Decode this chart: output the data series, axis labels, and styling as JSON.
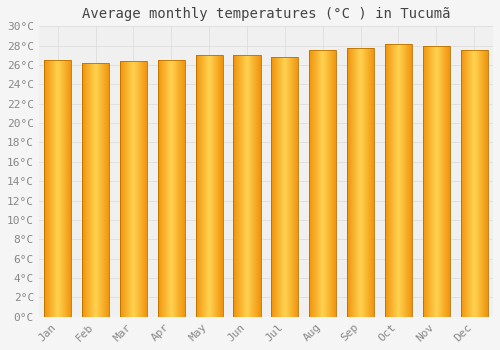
{
  "title": "Average monthly temperatures (°C ) in Tucumã",
  "months": [
    "Jan",
    "Feb",
    "Mar",
    "Apr",
    "May",
    "Jun",
    "Jul",
    "Aug",
    "Sep",
    "Oct",
    "Nov",
    "Dec"
  ],
  "values": [
    26.5,
    26.2,
    26.4,
    26.5,
    27.0,
    27.0,
    26.8,
    27.5,
    27.8,
    28.2,
    28.0,
    27.5
  ],
  "bar_color_center": "#FFD060",
  "bar_color_edge": "#F0920A",
  "bar_border_color": "#B87000",
  "background_color": "#f5f5f5",
  "plot_bg_color": "#f0f0f0",
  "grid_color": "#dddddd",
  "ylim": [
    0,
    30
  ],
  "ytick_step": 2,
  "title_fontsize": 10,
  "tick_fontsize": 8,
  "tick_label_color": "#888888",
  "title_color": "#444444",
  "bar_width": 0.72
}
